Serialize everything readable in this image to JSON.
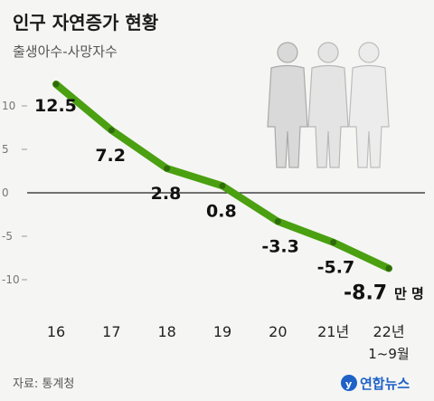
{
  "header": {
    "title": "인구 자연증가 현황",
    "subtitle": "출생아수-사망자수"
  },
  "chart_data": {
    "type": "line",
    "categories": [
      "16",
      "17",
      "18",
      "19",
      "20",
      "21년",
      "22년"
    ],
    "category_sublabels": [
      "",
      "",
      "",
      "",
      "",
      "",
      "1~9월"
    ],
    "values": [
      12.5,
      7.2,
      2.8,
      0.8,
      -3.3,
      -5.7,
      -8.7
    ],
    "data_labels": [
      "12.5",
      "7.2",
      "2.8",
      "0.8",
      "-3.3",
      "-5.7",
      "-8.7"
    ],
    "unit": "만 명",
    "yticks": [
      10,
      5,
      0,
      -5,
      -10
    ],
    "ytick_labels": [
      "10",
      "5",
      "0",
      "-5",
      "-10"
    ],
    "ylim": [
      -12,
      14
    ],
    "line_color": "#4aa010",
    "marker_color": "#2f6b0a",
    "grid": false
  },
  "footer": {
    "source": "자료: 통계청",
    "brand": "연합뉴스"
  },
  "colors": {
    "background": "#f5f5f3",
    "brand": "#1e62c8",
    "figure_front": "#d8d8d8",
    "figure_back": "#e6e6e6"
  }
}
